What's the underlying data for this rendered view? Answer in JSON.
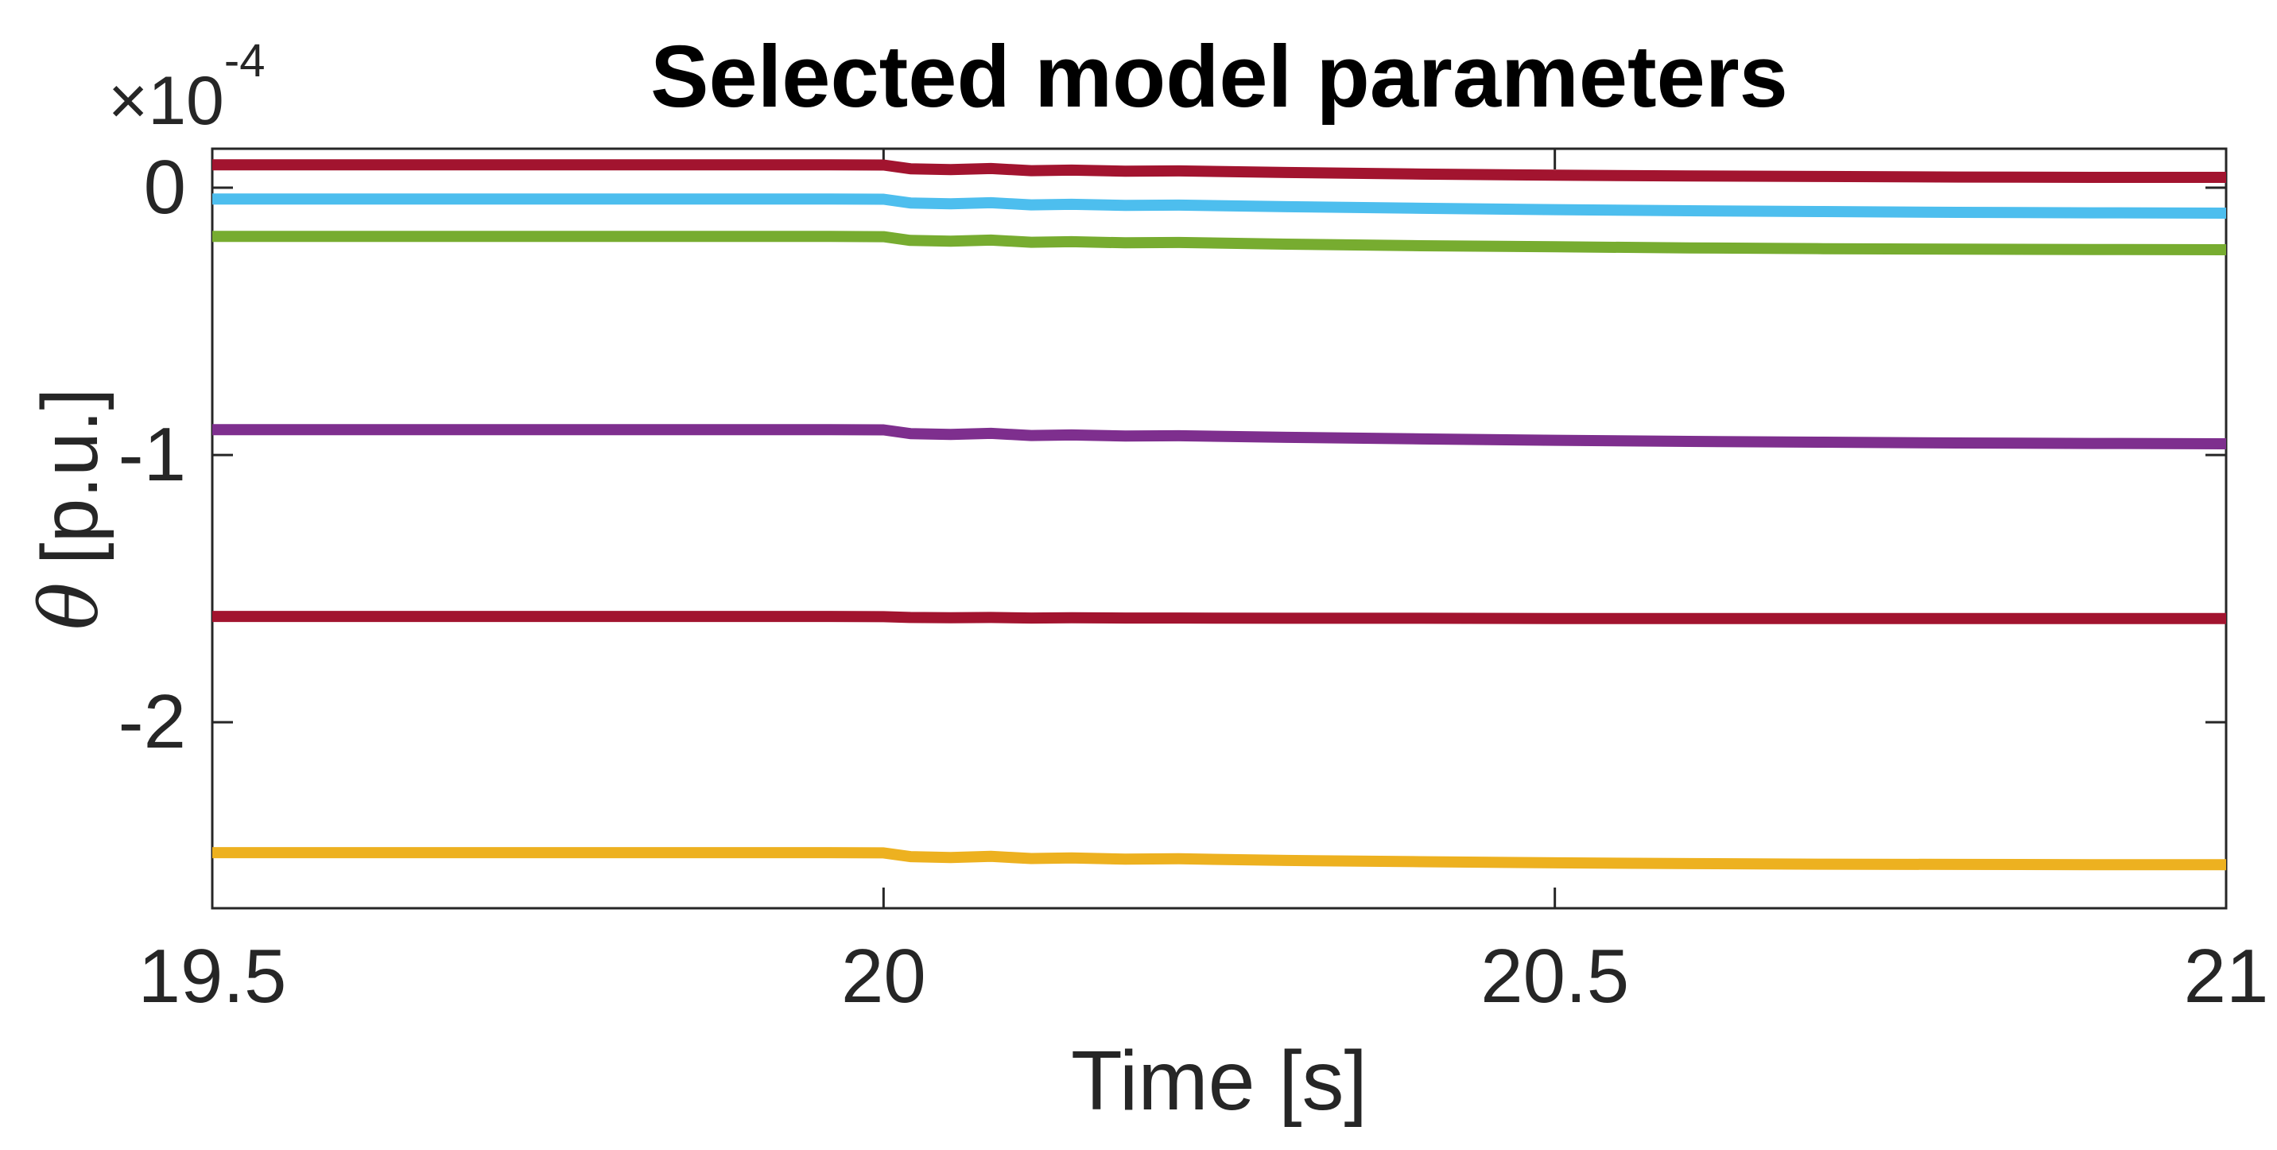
{
  "figure": {
    "title": "Selected model parameters",
    "xlabel": "Time [s]",
    "ylabel_symbol": "θ",
    "ylabel_unit": "[p.u.]",
    "y_multiplier_base": "×10",
    "y_multiplier_exp": "-4"
  },
  "chart_data": {
    "type": "line",
    "title": "Selected model parameters",
    "xlabel": "Time [s]",
    "ylabel": "θ [p.u.]",
    "y_scale_factor": "1e-4",
    "grid": false,
    "legend": "none",
    "axis_color": "#262626",
    "background_color": "#ffffff",
    "xlim": [
      19.5,
      21
    ],
    "ylim": [
      -2.696,
      0.146
    ],
    "x_ticks": [
      19.5,
      20,
      20.5,
      21
    ],
    "x_tick_labels": [
      "19.5",
      "20",
      "20.5",
      "21"
    ],
    "y_ticks": [
      0,
      -1,
      -2
    ],
    "y_tick_labels": [
      "0",
      "-1",
      "-2"
    ],
    "x": [
      19.5,
      19.6,
      19.7,
      19.8,
      19.9,
      19.96,
      20.0,
      20.02,
      20.05,
      20.08,
      20.11,
      20.14,
      20.18,
      20.22,
      20.3,
      20.4,
      20.5,
      20.6,
      20.7,
      20.8,
      20.9,
      21.0
    ],
    "series": [
      {
        "name": "line-1-darkred",
        "color": "#A2142F",
        "values": [
          0.086,
          0.086,
          0.086,
          0.086,
          0.086,
          0.086,
          0.085,
          0.071,
          0.068,
          0.072,
          0.064,
          0.066,
          0.062,
          0.063,
          0.057,
          0.051,
          0.047,
          0.044,
          0.042,
          0.04,
          0.039,
          0.039
        ]
      },
      {
        "name": "line-2-lightblue",
        "color": "#4DBEEE",
        "values": [
          -0.042,
          -0.042,
          -0.042,
          -0.042,
          -0.042,
          -0.042,
          -0.043,
          -0.057,
          -0.06,
          -0.056,
          -0.064,
          -0.062,
          -0.066,
          -0.065,
          -0.071,
          -0.077,
          -0.082,
          -0.086,
          -0.089,
          -0.092,
          -0.094,
          -0.095
        ]
      },
      {
        "name": "line-3-green",
        "color": "#77AC30",
        "values": [
          -0.182,
          -0.182,
          -0.182,
          -0.182,
          -0.182,
          -0.182,
          -0.183,
          -0.197,
          -0.2,
          -0.196,
          -0.204,
          -0.202,
          -0.206,
          -0.205,
          -0.211,
          -0.217,
          -0.221,
          -0.225,
          -0.228,
          -0.23,
          -0.231,
          -0.232
        ]
      },
      {
        "name": "line-4-purple",
        "color": "#7E2F8E",
        "values": [
          -0.905,
          -0.905,
          -0.905,
          -0.905,
          -0.905,
          -0.905,
          -0.906,
          -0.92,
          -0.923,
          -0.919,
          -0.927,
          -0.925,
          -0.929,
          -0.928,
          -0.934,
          -0.94,
          -0.945,
          -0.949,
          -0.952,
          -0.955,
          -0.957,
          -0.958
        ]
      },
      {
        "name": "line-5-darkred",
        "color": "#A2142F",
        "values": [
          -1.604,
          -1.604,
          -1.604,
          -1.604,
          -1.604,
          -1.604,
          -1.605,
          -1.608,
          -1.609,
          -1.608,
          -1.61,
          -1.609,
          -1.61,
          -1.61,
          -1.611,
          -1.611,
          -1.612,
          -1.612,
          -1.612,
          -1.612,
          -1.612,
          -1.612
        ]
      },
      {
        "name": "line-6-yellow",
        "color": "#EDB120",
        "values": [
          -2.488,
          -2.488,
          -2.488,
          -2.488,
          -2.488,
          -2.488,
          -2.489,
          -2.503,
          -2.506,
          -2.502,
          -2.51,
          -2.508,
          -2.512,
          -2.511,
          -2.517,
          -2.522,
          -2.526,
          -2.529,
          -2.531,
          -2.532,
          -2.533,
          -2.533
        ]
      }
    ]
  }
}
